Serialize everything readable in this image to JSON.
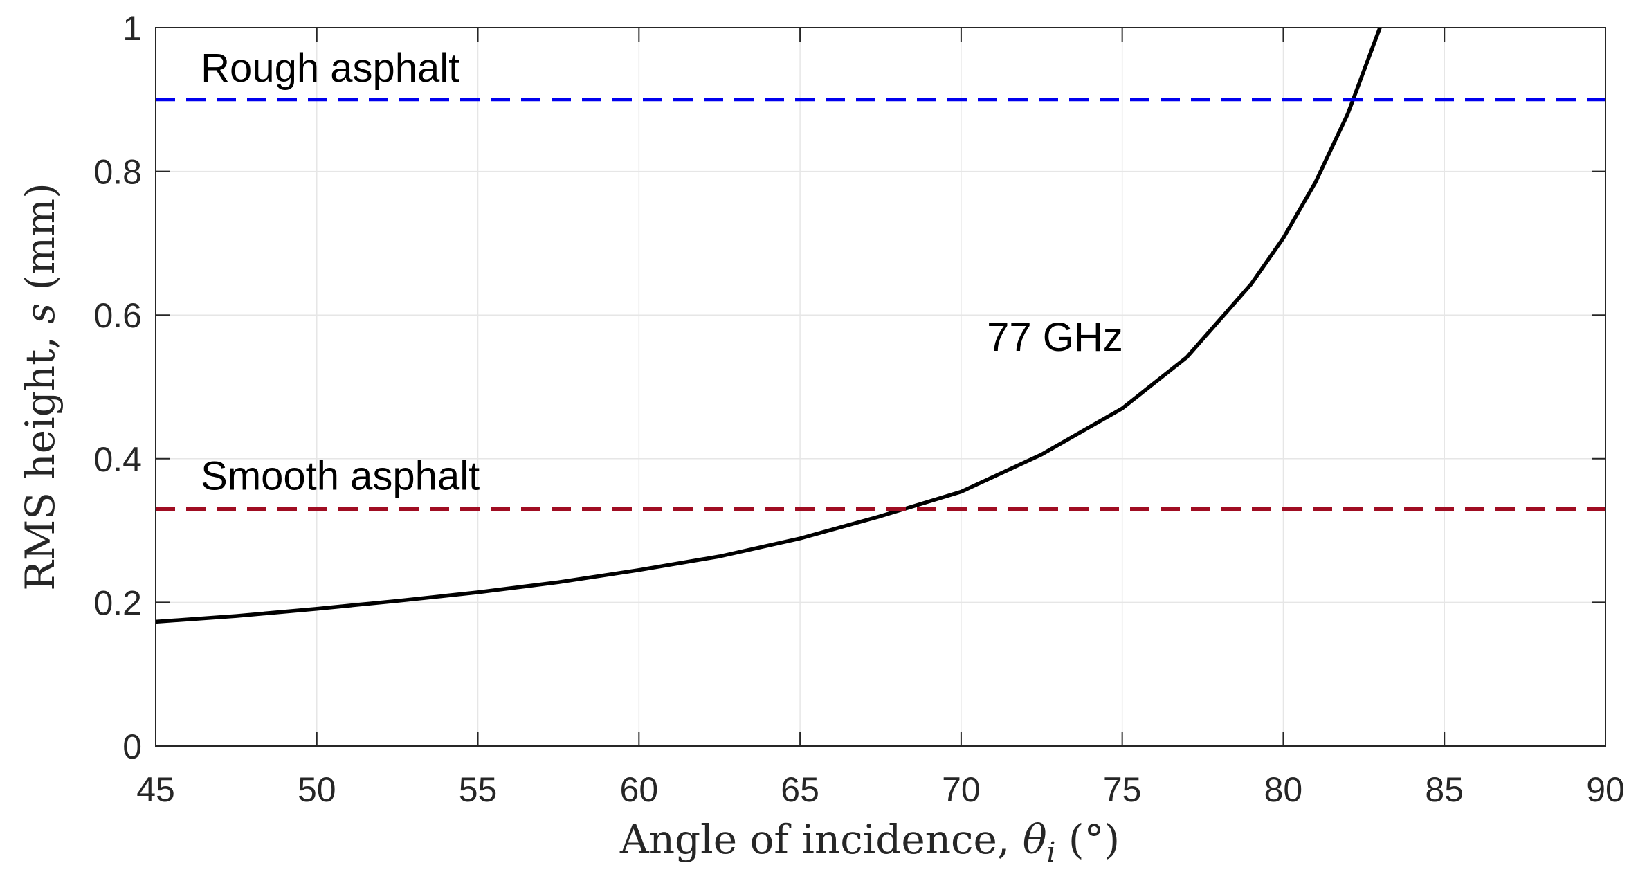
{
  "chart_data": {
    "type": "line",
    "title": "",
    "xlabel_text": "Angle of incidence, ",
    "xlabel_symbol": "θ",
    "xlabel_subscript": "i",
    "xlabel_unit": " (°)",
    "ylabel_text": "RMS height, ",
    "ylabel_symbol": "s",
    "ylabel_unit": " (mm)",
    "xlim": [
      45,
      90
    ],
    "ylim": [
      0,
      1
    ],
    "xticks": [
      45,
      50,
      55,
      60,
      65,
      70,
      75,
      80,
      85,
      90
    ],
    "yticks": [
      0,
      0.2,
      0.4,
      0.6,
      0.8,
      1
    ],
    "ytick_labels": [
      "0",
      "0.2",
      "0.4",
      "0.6",
      "0.8",
      "1"
    ],
    "grid": true,
    "series": [
      {
        "name": "77 GHz",
        "color": "#000000",
        "style": "solid",
        "x": [
          45,
          47.5,
          50,
          52.5,
          55,
          57.5,
          60,
          62.5,
          65,
          67.5,
          70,
          72.5,
          75,
          77,
          79,
          80,
          81,
          82,
          82.5,
          83
        ],
        "y": [
          0.173,
          0.181,
          0.191,
          0.202,
          0.214,
          0.228,
          0.245,
          0.264,
          0.289,
          0.32,
          0.354,
          0.406,
          0.47,
          0.541,
          0.643,
          0.707,
          0.785,
          0.88,
          0.94,
          1.0
        ]
      },
      {
        "name": "Rough asphalt",
        "color": "#0000ee",
        "style": "dashed",
        "x": [
          45,
          90
        ],
        "y": [
          0.9,
          0.9
        ]
      },
      {
        "name": "Smooth asphalt",
        "color": "#a00d22",
        "style": "dashed",
        "x": [
          45,
          90
        ],
        "y": [
          0.33,
          0.33
        ]
      }
    ],
    "annotations": [
      {
        "text": "Rough asphalt",
        "x": 46.4,
        "y": 0.925
      },
      {
        "text": "77 GHz",
        "x": 70.8,
        "y": 0.55
      },
      {
        "text": "Smooth asphalt",
        "x": 46.4,
        "y": 0.357
      }
    ]
  }
}
